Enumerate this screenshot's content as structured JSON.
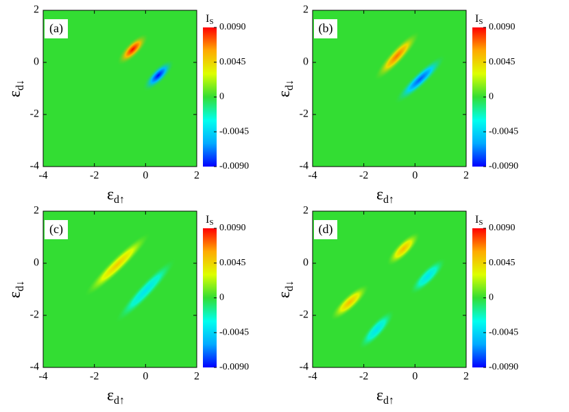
{
  "chart_data": [
    {
      "type": "heatmap",
      "panel_label": "(a)",
      "xlim": [
        -4,
        2
      ],
      "ylim": [
        -4,
        2
      ],
      "xticks": [
        -4,
        -2,
        0,
        2
      ],
      "yticks": [
        -4,
        -2,
        0,
        2
      ],
      "xlabel": {
        "text": "ε",
        "sub": "d↑"
      },
      "ylabel": {
        "text": "ε",
        "sub": "d↓"
      },
      "colorbar": {
        "label": "I",
        "sub": "S",
        "clim": [
          -0.009,
          0.009
        ],
        "colormap": [
          "#0000ff",
          "#00aaff",
          "#00ffee",
          "#33dd33",
          "#ddff00",
          "#ffaa00",
          "#ff0000"
        ],
        "ticks": [
          {
            "value": 0.009,
            "label": "0.0090"
          },
          {
            "value": 0.0045,
            "label": "0.0045"
          },
          0,
          {
            "value": -0.0045,
            "label": "-0.0045"
          },
          {
            "value": -0.009,
            "label": "-0.0090"
          }
        ]
      },
      "blobs": [
        {
          "x": [
            -0.9,
            -0.1
          ],
          "y": [
            0.1,
            0.9
          ],
          "value": 0.009
        },
        {
          "x": [
            0.1,
            0.9
          ],
          "y": [
            -0.9,
            -0.1
          ],
          "value": -0.009
        }
      ]
    },
    {
      "type": "heatmap",
      "panel_label": "(b)",
      "xlim": [
        -4,
        2
      ],
      "ylim": [
        -4,
        2
      ],
      "xticks": [
        -4,
        -2,
        0,
        2
      ],
      "yticks": [
        -4,
        -2,
        0,
        2
      ],
      "xlabel": {
        "text": "ε",
        "sub": "d↑"
      },
      "ylabel": {
        "text": "ε",
        "sub": "d↓"
      },
      "colorbar": {
        "label": "I",
        "sub": "S",
        "clim": [
          -0.009,
          0.009
        ],
        "colormap": [
          "#0000ff",
          "#00aaff",
          "#00ffee",
          "#33dd33",
          "#ddff00",
          "#ffaa00",
          "#ff0000"
        ],
        "ticks": [
          {
            "value": 0.009,
            "label": "0.0090"
          },
          {
            "value": 0.0045,
            "label": "0.0045"
          },
          0,
          {
            "value": -0.0045,
            "label": "-0.0045"
          },
          {
            "value": -0.009,
            "label": "-0.0090"
          }
        ]
      },
      "blobs": [
        {
          "x": [
            -1.4,
            0
          ],
          "y": [
            -0.5,
            1
          ],
          "value": 0.007
        },
        {
          "x": [
            -0.6,
            1
          ],
          "y": [
            -1.4,
            0.1
          ],
          "value": -0.0075
        }
      ]
    },
    {
      "type": "heatmap",
      "panel_label": "(c)",
      "xlim": [
        -4,
        2
      ],
      "ylim": [
        -4,
        2
      ],
      "xticks": [
        -4,
        -2,
        0,
        2
      ],
      "yticks": [
        -4,
        -2,
        0,
        2
      ],
      "xlabel": {
        "text": "ε",
        "sub": "d↑"
      },
      "ylabel": {
        "text": "ε",
        "sub": "d↓"
      },
      "colorbar": {
        "label": "I",
        "sub": "S",
        "clim": [
          -0.009,
          0.009
        ],
        "colormap": [
          "#0000ff",
          "#00aaff",
          "#00ffee",
          "#33dd33",
          "#ddff00",
          "#ffaa00",
          "#ff0000"
        ],
        "ticks": [
          {
            "value": 0.009,
            "label": "0.0090"
          },
          {
            "value": 0.0045,
            "label": "0.0045"
          },
          0,
          {
            "value": -0.0045,
            "label": "-0.0045"
          },
          {
            "value": -0.009,
            "label": "-0.0090"
          }
        ]
      },
      "blobs": [
        {
          "x": [
            -2.2,
            0
          ],
          "y": [
            -1.1,
            1
          ],
          "value": 0.005
        },
        {
          "x": [
            -1,
            1
          ],
          "y": [
            -2.1,
            0
          ],
          "value": -0.004
        }
      ]
    },
    {
      "type": "heatmap",
      "panel_label": "(d)",
      "xlim": [
        -4,
        2
      ],
      "ylim": [
        -4,
        2
      ],
      "xticks": [
        -4,
        -2,
        0,
        2
      ],
      "yticks": [
        -4,
        -2,
        0,
        2
      ],
      "xlabel": {
        "text": "ε",
        "sub": "d↑"
      },
      "ylabel": {
        "text": "ε",
        "sub": "d↓"
      },
      "colorbar": {
        "label": "I",
        "sub": "S",
        "clim": [
          -0.009,
          0.009
        ],
        "colormap": [
          "#0000ff",
          "#00aaff",
          "#00ffee",
          "#33dd33",
          "#ddff00",
          "#ffaa00",
          "#ff0000"
        ],
        "ticks": [
          {
            "value": 0.009,
            "label": "0.0090"
          },
          {
            "value": 0.0045,
            "label": "0.0045"
          },
          0,
          {
            "value": -0.0045,
            "label": "-0.0045"
          },
          {
            "value": -0.009,
            "label": "-0.0090"
          }
        ]
      },
      "blobs": [
        {
          "x": [
            -0.9,
            0
          ],
          "y": [
            0.1,
            1
          ],
          "value": 0.0055
        },
        {
          "x": [
            -3.1,
            -2
          ],
          "y": [
            -2,
            -1
          ],
          "value": 0.0055
        },
        {
          "x": [
            0,
            1
          ],
          "y": [
            -1,
            0
          ],
          "value": -0.004
        },
        {
          "x": [
            -2,
            -1
          ],
          "y": [
            -3.1,
            -2
          ],
          "value": -0.004
        }
      ]
    }
  ]
}
